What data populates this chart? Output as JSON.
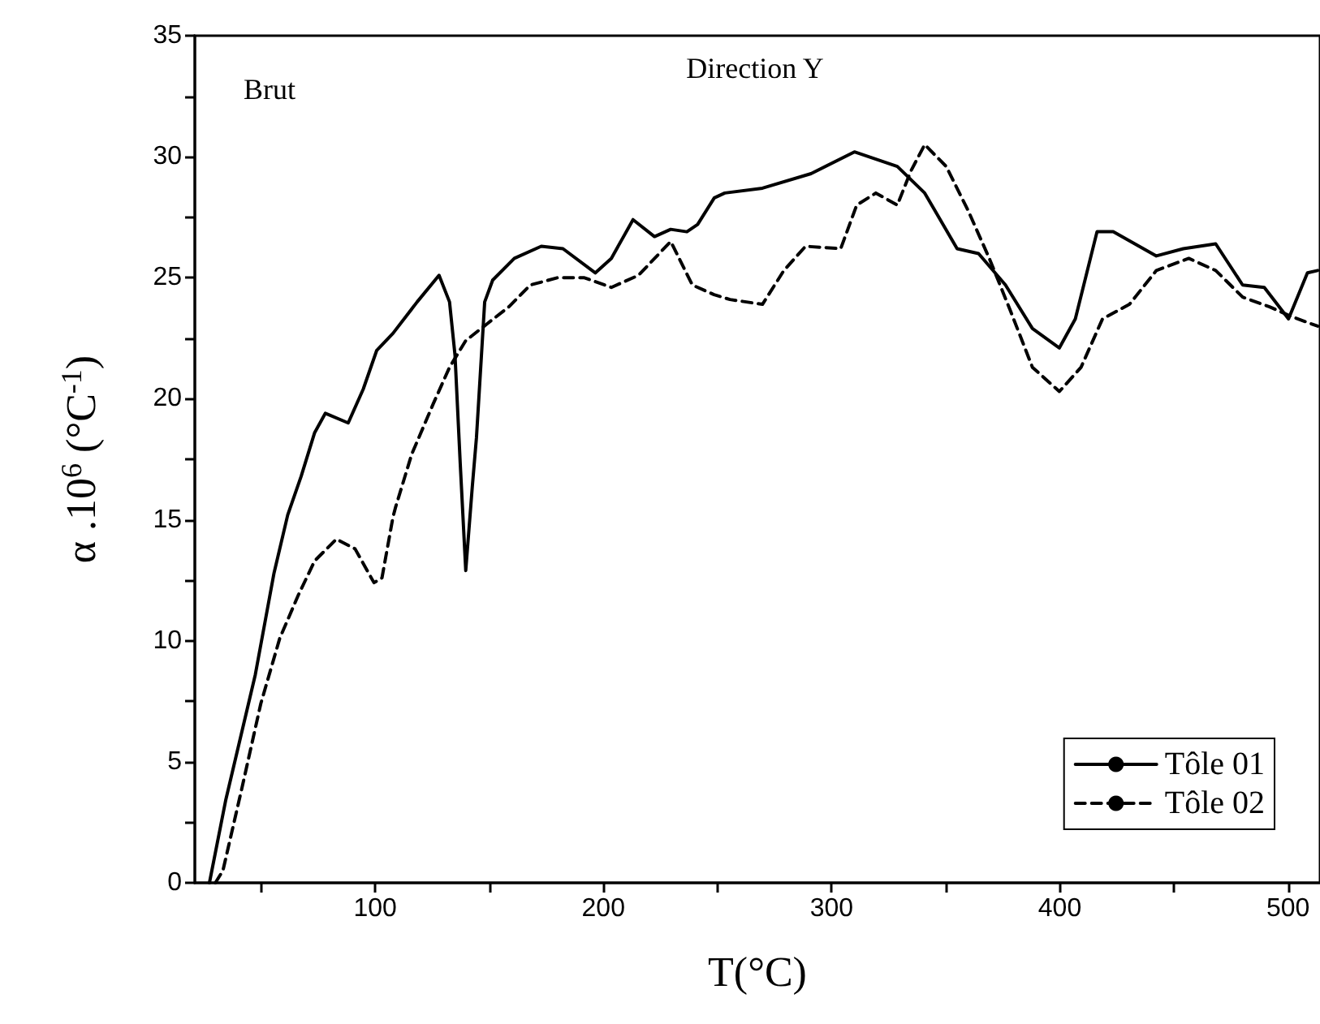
{
  "chart_data": {
    "type": "line",
    "title": "Direction Y",
    "xlabel": "T(°C)",
    "ylabel": "α .10$^{6}$ (°C$^{-1}$)",
    "annotations": [
      "Brut"
    ],
    "xlim": [
      21,
      514
    ],
    "xticks": [
      {
        "value": 50,
        "label": null
      },
      100,
      {
        "value": 150,
        "label": null
      },
      200,
      {
        "value": 250,
        "label": null
      },
      300,
      {
        "value": 350,
        "label": null
      },
      400,
      {
        "value": 450,
        "label": null
      },
      500
    ],
    "ylim": [
      0,
      35
    ],
    "yticks": [
      0,
      {
        "value": 2.5,
        "label": null
      },
      5,
      {
        "value": 7.5,
        "label": null
      },
      10,
      {
        "value": 12.5,
        "label": null
      },
      15,
      {
        "value": 17.5,
        "label": null
      },
      20,
      {
        "value": 22.5,
        "label": null
      },
      25,
      {
        "value": 27.5,
        "label": null
      },
      30,
      {
        "value": 32.5,
        "label": null
      },
      35
    ],
    "grid": false,
    "legend": "bottom right",
    "marker": "none",
    "series": [
      {
        "name": "Tôle 01",
        "color": "#000000",
        "line_style": "solid",
        "x": [
          27.4,
          34.5,
          47.5,
          55.7,
          61.7,
          67.6,
          73.5,
          78.2,
          88.2,
          94.8,
          100.7,
          107.8,
          118.4,
          128,
          132.6,
          135,
          137.3,
          139.7,
          142.6,
          144.4,
          148,
          151.5,
          161,
          172.8,
          182.3,
          196.5,
          203.5,
          213,
          222.4,
          229.5,
          236.6,
          241.3,
          248.6,
          253.2,
          269.7,
          291,
          310,
          328.8,
          340.8,
          355,
          364.4,
          376.2,
          388,
          399.8,
          406.8,
          416.3,
          423.4,
          442.3,
          454.1,
          468.3,
          480.1,
          489.6,
          500.2,
          508.5,
          513
        ],
        "values": [
          0,
          3.4,
          8.6,
          12.8,
          15.2,
          16.8,
          18.6,
          19.4,
          19.0,
          20.4,
          22.0,
          22.7,
          24.0,
          25.1,
          24.0,
          21.8,
          17.3,
          12.9,
          16.4,
          18.4,
          24.0,
          24.9,
          25.8,
          26.3,
          26.2,
          25.2,
          25.8,
          27.4,
          26.7,
          27.0,
          26.9,
          27.2,
          28.3,
          28.5,
          28.7,
          29.3,
          30.2,
          29.6,
          28.5,
          26.2,
          26.0,
          24.7,
          22.9,
          22.1,
          23.3,
          26.9,
          26.9,
          25.9,
          26.2,
          26.4,
          24.7,
          24.6,
          23.3,
          25.2,
          25.3
        ]
      },
      {
        "name": "Tôle 02",
        "color": "#000000",
        "line_style": "dashed",
        "x": [
          30,
          33.3,
          41.6,
          49.9,
          58.2,
          66.4,
          73.5,
          83,
          91.2,
          99.5,
          103,
          107.8,
          108.9,
          116,
          125.5,
          132.6,
          139.7,
          149.1,
          158.6,
          168,
          179.9,
          191.7,
          203.5,
          215.4,
          229.5,
          239,
          248.5,
          255.5,
          269.7,
          279.1,
          288.6,
          304,
          311,
          319.4,
          328.8,
          334.7,
          340.8,
          350.2,
          359.7,
          369.1,
          378.5,
          388,
          399.8,
          409.3,
          418.7,
          430.5,
          442.3,
          456.5,
          468.3,
          480.1,
          491.9,
          501.4,
          513
        ],
        "values": [
          0,
          0.5,
          3.9,
          7.4,
          10.1,
          11.9,
          13.3,
          14.2,
          13.8,
          12.4,
          12.6,
          15.1,
          15.5,
          17.7,
          19.8,
          21.3,
          22.4,
          23.1,
          23.8,
          24.7,
          25.0,
          25.0,
          24.6,
          25.1,
          26.5,
          24.7,
          24.3,
          24.1,
          23.9,
          25.3,
          26.3,
          26.2,
          28.0,
          28.5,
          28.0,
          29.4,
          30.5,
          29.6,
          27.8,
          25.8,
          23.6,
          21.3,
          20.3,
          21.3,
          23.3,
          23.9,
          25.3,
          25.8,
          25.3,
          24.2,
          23.8,
          23.4,
          23.0
        ]
      }
    ]
  }
}
